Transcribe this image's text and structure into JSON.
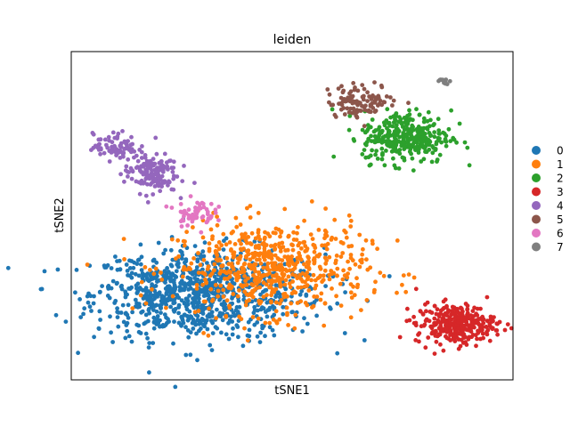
{
  "chart_data": {
    "type": "scatter",
    "title": "leiden",
    "xlabel": "tSNE1",
    "ylabel": "tSNE2",
    "xlim": [
      0,
      100
    ],
    "ylim": [
      0,
      100
    ],
    "ticks": false,
    "grid": false,
    "legend_position": "right",
    "series": [
      {
        "name": "0",
        "color": "#1f77b4",
        "n": 760,
        "center": [
          31,
          26
        ],
        "spread": [
          13,
          7
        ],
        "extra_center": [
          20,
          26
        ],
        "extra_spread": [
          6,
          6
        ],
        "extra_n": 160
      },
      {
        "name": "1",
        "color": "#ff7f0e",
        "n": 620,
        "center": [
          45,
          34
        ],
        "spread": [
          11,
          7
        ]
      },
      {
        "name": "2",
        "color": "#2ca02c",
        "n": 330,
        "center": [
          76,
          74
        ],
        "spread": [
          5,
          4
        ]
      },
      {
        "name": "3",
        "color": "#d62728",
        "n": 310,
        "center": [
          87,
          17
        ],
        "spread": [
          4.5,
          3
        ]
      },
      {
        "name": "4",
        "color": "#9467bd",
        "n": 150,
        "center": [
          18,
          63
        ],
        "spread": [
          3,
          3
        ],
        "extra_center": [
          10,
          71
        ],
        "extra_spread": [
          2.5,
          2
        ],
        "extra_n": 80
      },
      {
        "name": "5",
        "color": "#8c564b",
        "n": 110,
        "center": [
          66,
          85
        ],
        "spread": [
          4,
          2.5
        ]
      },
      {
        "name": "6",
        "color": "#e377c2",
        "n": 60,
        "center": [
          28,
          51
        ],
        "spread": [
          2.2,
          2
        ]
      },
      {
        "name": "7",
        "color": "#7f7f7f",
        "n": 12,
        "center": [
          84,
          91
        ],
        "spread": [
          0.7,
          0.5
        ]
      }
    ]
  }
}
